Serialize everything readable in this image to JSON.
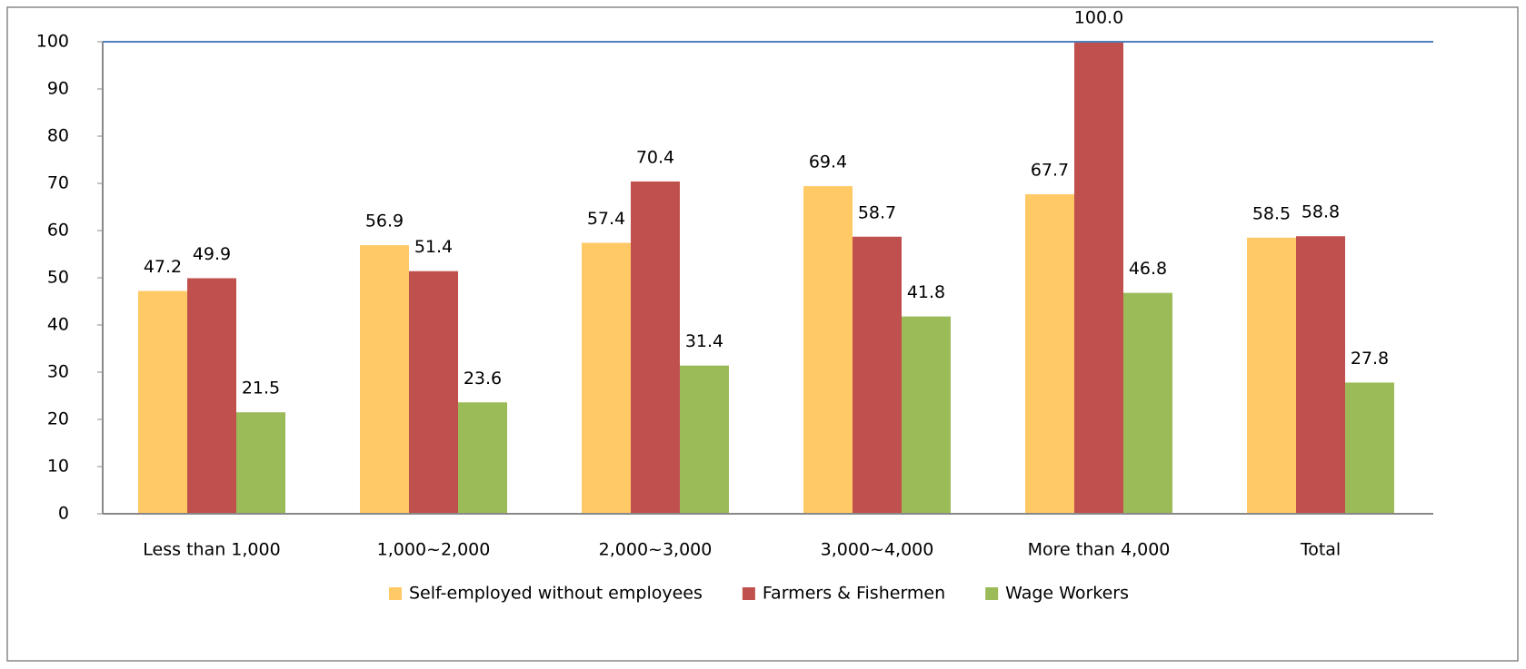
{
  "chart_data": {
    "type": "bar",
    "categories": [
      "Less than 1,000",
      "1,000~2,000",
      "2,000~3,000",
      "3,000~4,000",
      "More than 4,000",
      "Total"
    ],
    "series": [
      {
        "name": "Self-employed without employees",
        "color": "#FFC966",
        "values": [
          47.2,
          56.9,
          57.4,
          69.4,
          67.7,
          58.5
        ]
      },
      {
        "name": "Farmers & Fishermen",
        "color": "#C0504D",
        "values": [
          49.9,
          51.4,
          70.4,
          58.7,
          100,
          58.8
        ],
        "value_labels": [
          "49.9",
          "51.4",
          "70.4",
          "58.7",
          "100.0",
          "58.8"
        ]
      },
      {
        "name": "Wage Workers",
        "color": "#9BBB59",
        "values": [
          21.5,
          23.6,
          31.4,
          41.8,
          46.8,
          27.8
        ]
      }
    ],
    "ylim": [
      0,
      100
    ],
    "yticks": [
      0,
      10,
      20,
      30,
      40,
      50,
      60,
      70,
      80,
      90,
      100
    ],
    "legend": "bottom"
  }
}
